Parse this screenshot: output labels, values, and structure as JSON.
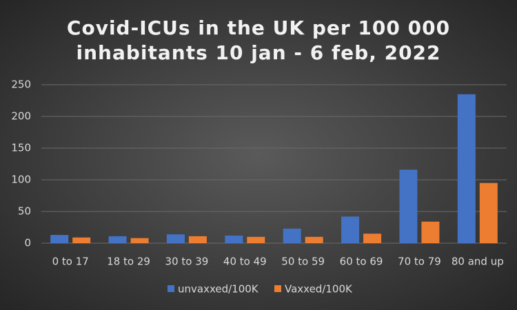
{
  "chart_data": {
    "type": "bar",
    "title": [
      "Covid-ICUs in the UK per 100 000",
      "inhabitants 10 jan - 6 feb, 2022"
    ],
    "categories": [
      "0 to 17",
      "18 to 29",
      "30 to 39",
      "40 to 49",
      "50 to 59",
      "60 to 69",
      "70 to 79",
      "80 and up"
    ],
    "series": [
      {
        "name": "unvaxxed/100K",
        "color": "#4472c4",
        "values": [
          13,
          11,
          14,
          12,
          23,
          42,
          116,
          235
        ]
      },
      {
        "name": "Vaxxed/100K",
        "color": "#ed7d31",
        "values": [
          9,
          8,
          11,
          10,
          10,
          15,
          34,
          95
        ]
      }
    ],
    "ylim": [
      0,
      250
    ],
    "yticks": [
      0,
      50,
      100,
      150,
      200,
      250
    ],
    "grid": true,
    "legend": "bottom"
  }
}
